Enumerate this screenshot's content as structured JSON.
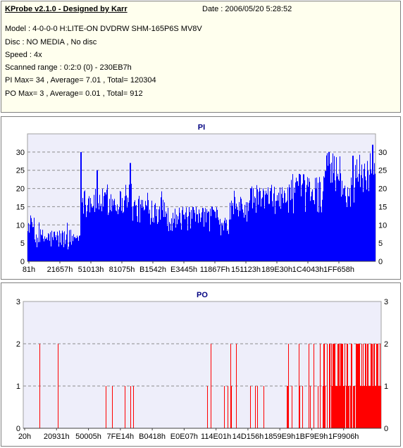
{
  "info": {
    "title": "KProbe v2.1.0 - Designed by Karr",
    "date": "Date : 2006/05/20 5:28:52",
    "model": "Model : 4-0-0-0 H:LITE-ON DVDRW SHM-165P6S MV8V",
    "disc": "Disc : NO MEDIA , No disc",
    "speed": "Speed : 4x",
    "range": "Scanned range : 0:2:0 (0) - 230EB7h",
    "pi_stats": "PI Max= 34 , Average= 7.01 , Total= 120304",
    "po_stats": "PO Max= 3 , Average= 0.01 , Total= 912"
  },
  "colors": {
    "pi_bar": "#0000ff",
    "po_bar": "#ff0000",
    "plot_bg": "#eeeefa",
    "title": "#000080"
  },
  "chart_data": [
    {
      "type": "bar",
      "title": "PI",
      "ylim": [
        0,
        35
      ],
      "yticks": [
        0,
        5,
        10,
        15,
        20,
        25,
        30
      ],
      "xtick_labels": [
        "81h",
        "21657h",
        "51013h",
        "81075h",
        "B1542h",
        "E3445h",
        "11867Fh",
        "151123h",
        "189E30h",
        "1C4043h",
        "1FF658h"
      ],
      "grid": true,
      "segments": [
        {
          "start": 0,
          "end": 2,
          "min": 7,
          "max": 12
        },
        {
          "start": 2,
          "end": 13,
          "min": 3,
          "max": 9
        },
        {
          "start": 13,
          "end": 15,
          "min": 5,
          "max": 8
        },
        {
          "start": 15,
          "end": 16,
          "min": 13,
          "max": 30
        },
        {
          "start": 16,
          "end": 28,
          "min": 12,
          "max": 20
        },
        {
          "start": 28,
          "end": 30,
          "min": 14,
          "max": 22
        },
        {
          "start": 30,
          "end": 40,
          "min": 10,
          "max": 18
        },
        {
          "start": 40,
          "end": 55,
          "min": 8,
          "max": 15
        },
        {
          "start": 55,
          "end": 58,
          "min": 7,
          "max": 12
        },
        {
          "start": 58,
          "end": 64,
          "min": 10,
          "max": 18
        },
        {
          "start": 64,
          "end": 75,
          "min": 13,
          "max": 21
        },
        {
          "start": 75,
          "end": 85,
          "min": 13,
          "max": 24
        },
        {
          "start": 85,
          "end": 90,
          "min": 16,
          "max": 30
        },
        {
          "start": 90,
          "end": 94,
          "min": 14,
          "max": 22
        },
        {
          "start": 94,
          "end": 100,
          "min": 18,
          "max": 30
        }
      ],
      "spikes": [
        {
          "pos": 15.2,
          "value": 30
        },
        {
          "pos": 20,
          "value": 25
        },
        {
          "pos": 29.5,
          "value": 27
        },
        {
          "pos": 53,
          "value": 15
        },
        {
          "pos": 64,
          "value": 20
        },
        {
          "pos": 78,
          "value": 24
        },
        {
          "pos": 86.5,
          "value": 30
        },
        {
          "pos": 93.5,
          "value": 29
        },
        {
          "pos": 99,
          "value": 32
        }
      ]
    },
    {
      "type": "bar",
      "title": "PO",
      "ylim": [
        0,
        3
      ],
      "yticks": [
        0,
        1,
        2,
        3
      ],
      "xtick_labels": [
        "20h",
        "20931h",
        "50005h",
        "7FE14h",
        "B0418h",
        "E0E07h",
        "114E01h",
        "14D156h",
        "1859E9h",
        "1BF9E9h",
        "1F9906h"
      ],
      "grid": true,
      "segments": [
        {
          "start": 0,
          "end": 20,
          "rate1": 0.008,
          "rate2": 0.025
        },
        {
          "start": 20,
          "end": 50,
          "rate1": 0.035,
          "rate2": 0.012
        },
        {
          "start": 50,
          "end": 72,
          "rate1": 0.06,
          "rate2": 0.02
        },
        {
          "start": 72,
          "end": 80,
          "rate1": 0.12,
          "rate2": 0.07
        },
        {
          "start": 80,
          "end": 86,
          "rate1": 0.22,
          "rate2": 0.1
        },
        {
          "start": 86,
          "end": 100,
          "rate1": 0.45,
          "rate2": 0.4
        }
      ]
    }
  ]
}
